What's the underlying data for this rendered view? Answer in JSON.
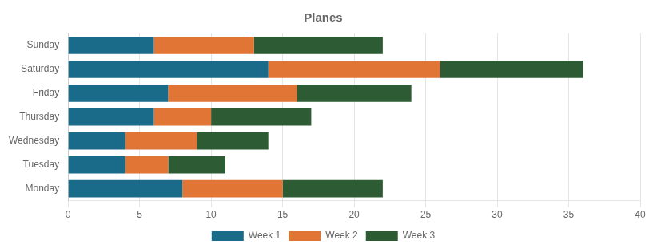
{
  "chart_data": {
    "type": "bar",
    "title": "Planes",
    "orientation": "horizontal",
    "stacked": true,
    "categories": [
      "Monday",
      "Tuesday",
      "Wednesday",
      "Thursday",
      "Friday",
      "Saturday",
      "Sunday"
    ],
    "series": [
      {
        "name": "Week 1",
        "color": "#1a6b8a",
        "values": [
          8,
          4,
          4,
          6,
          7,
          14,
          6
        ]
      },
      {
        "name": "Week 2",
        "color": "#e07535",
        "values": [
          7,
          3,
          5,
          4,
          9,
          12,
          7
        ]
      },
      {
        "name": "Week 3",
        "color": "#2d5c34",
        "values": [
          7,
          4,
          5,
          7,
          8,
          10,
          9
        ]
      }
    ],
    "xlim": [
      0,
      40
    ],
    "xticks": [
      0,
      5,
      10,
      15,
      20,
      25,
      30,
      35,
      40
    ],
    "grid": true,
    "legend": "bottom"
  }
}
